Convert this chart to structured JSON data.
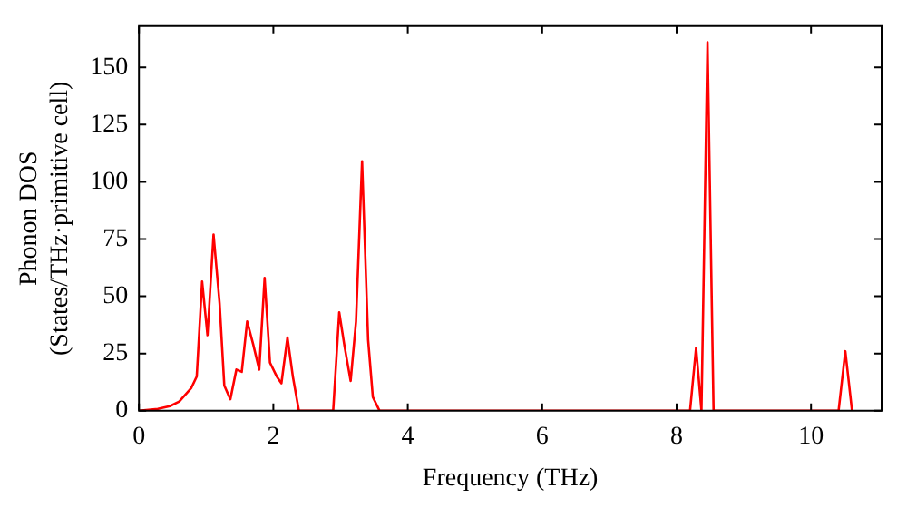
{
  "chart_data": {
    "type": "line",
    "xlabel": "Frequency (THz)",
    "ylabel": "Phonon DOS\n(States/THz·primitive cell)",
    "x": [
      0,
      0.28,
      0.46,
      0.6,
      0.78,
      0.86,
      0.94,
      1.02,
      1.11,
      1.2,
      1.27,
      1.36,
      1.45,
      1.53,
      1.61,
      1.7,
      1.79,
      1.87,
      1.95,
      2.05,
      2.12,
      2.21,
      2.29,
      2.38,
      2.89,
      2.98,
      3.06,
      3.15,
      3.23,
      3.32,
      3.41,
      3.48,
      3.58,
      8.2,
      8.29,
      8.37,
      8.46,
      8.55,
      10.41,
      10.51,
      10.61
    ],
    "series": [
      {
        "color": "#ff0000",
        "values": [
          0,
          0.8,
          2,
          4,
          10,
          15,
          56.5,
          33,
          77,
          47,
          11,
          5,
          18,
          17,
          39,
          29,
          18,
          58,
          21,
          15,
          12,
          32,
          15,
          0,
          0,
          43,
          28,
          13,
          39,
          109,
          31,
          6,
          0,
          0,
          27.5,
          0,
          161,
          0,
          0,
          26,
          0
        ]
      }
    ],
    "xlim": [
      0,
      11.05
    ],
    "ylim": [
      0,
      168
    ],
    "xticks": [
      0,
      2,
      4,
      6,
      8,
      10
    ],
    "yticks": [
      0,
      25,
      50,
      75,
      100,
      125,
      150
    ],
    "grid": false,
    "legend": false,
    "marker": "none",
    "line_style": "solid"
  }
}
